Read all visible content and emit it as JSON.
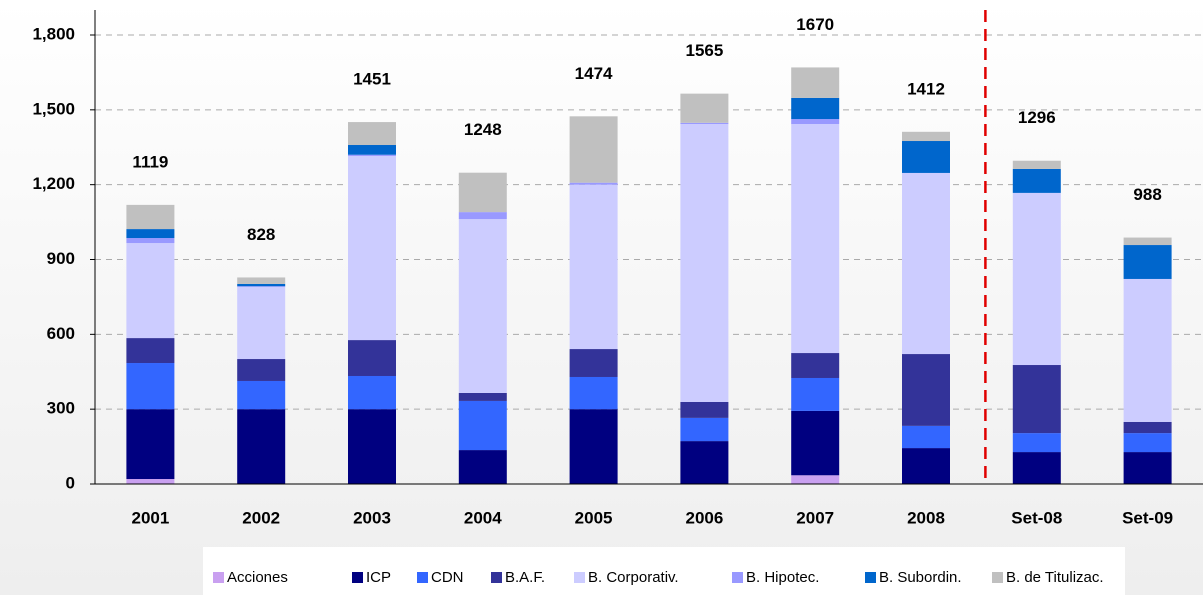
{
  "chart_data": {
    "type": "stacked_bar",
    "categories": [
      "2001",
      "2002",
      "2003",
      "2004",
      "2005",
      "2006",
      "2007",
      "2008",
      "Set-08",
      "Set-09"
    ],
    "series": [
      {
        "name": "Acciones",
        "color": "#c9a0f0",
        "values": [
          20,
          0,
          0,
          0,
          0,
          0,
          35,
          0,
          0,
          0
        ]
      },
      {
        "name": "ICP",
        "color": "#000080",
        "values": [
          280,
          300,
          300,
          136,
          300,
          172,
          258,
          144,
          128,
          128
        ]
      },
      {
        "name": "CDN",
        "color": "#3366ff",
        "values": [
          185,
          113,
          133,
          197,
          129,
          93,
          132,
          89,
          76,
          76
        ]
      },
      {
        "name": "B.A.F.",
        "color": "#333399",
        "values": [
          100,
          88,
          144,
          32,
          112,
          64,
          100,
          288,
          273,
          45
        ]
      },
      {
        "name": "B. Corporativ.",
        "color": "#ccccff",
        "values": [
          381,
          289,
          738,
          697,
          659,
          1114,
          918,
          726,
          690,
          573
        ]
      },
      {
        "name": "B. Hipotec.",
        "color": "#9999ff",
        "values": [
          20,
          3,
          5,
          28,
          8,
          5,
          20,
          0,
          0,
          0
        ]
      },
      {
        "name": "B. Subordin.",
        "color": "#0066cc",
        "values": [
          36,
          9,
          39,
          0,
          0,
          0,
          85,
          128,
          96,
          136
        ]
      },
      {
        "name": "B. de Titulizac.",
        "color": "#c0c0c0",
        "values": [
          97,
          26,
          92,
          158,
          266,
          117,
          122,
          37,
          33,
          30
        ]
      }
    ],
    "totals": [
      1119,
      828,
      1451,
      1248,
      1474,
      1565,
      1670,
      1412,
      1296,
      988
    ],
    "ylim": [
      0,
      1800
    ],
    "yticks": [
      0,
      300,
      600,
      900,
      {
        "value": 1200,
        "label": "1,200"
      },
      {
        "value": 1500,
        "label": "1,500"
      },
      {
        "value": 1800,
        "label": "1,800"
      }
    ],
    "grid": true,
    "legend": "bottom"
  }
}
